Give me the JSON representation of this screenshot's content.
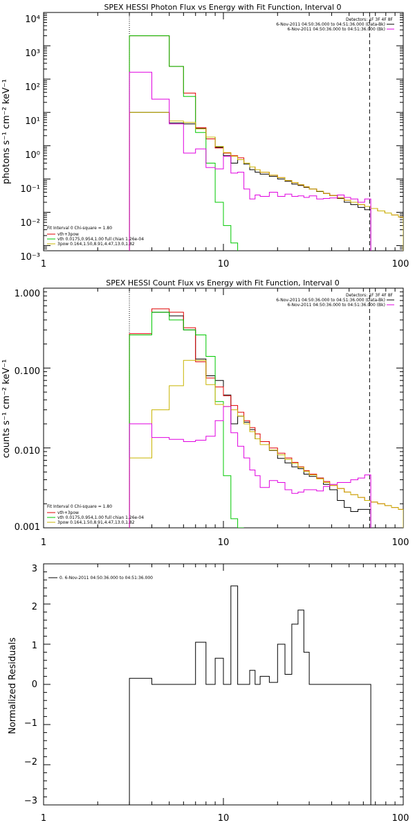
{
  "chart_data": [
    {
      "type": "line",
      "title": "SPEX HESSI Photon Flux vs Energy with Fit Function, Interval 0",
      "ylabel": "photons s⁻¹ cm⁻² keV⁻¹",
      "xlabel": "",
      "xscale": "log",
      "yscale": "log",
      "xlim": [
        1,
        100
      ],
      "ylim": [
        0.0007,
        10000
      ],
      "x_ticks": [
        1,
        10,
        100
      ],
      "x_tick_labels": [
        "1",
        "10",
        "100"
      ],
      "y_ticks": [
        0.001,
        0.01,
        0.1,
        1,
        10,
        100,
        1000,
        10000
      ],
      "y_tick_labels": [
        "10⁻³",
        "10⁻²",
        "10⁻¹",
        "10⁰",
        "10¹",
        "10²",
        "10³",
        "10⁴"
      ],
      "vlines": [
        {
          "x": 3,
          "style": "dotted"
        },
        {
          "x": 65,
          "style": "dashed"
        }
      ],
      "legend_top_right": {
        "header": "Detectors: 1F 3F 4F 8F",
        "entries": [
          {
            "label": "6-Nov-2011 04:50:36.000 to 04:51:36.000 (Data-Bk)",
            "color": "#000000"
          },
          {
            "label": "6-Nov-2011 04:50:36.000 to 04:51:36.000 (Bk)",
            "color": "#e000e0"
          }
        ]
      },
      "legend_bottom_left": {
        "header": "Fit Interval 0   Chi-square = 1.80",
        "entries": [
          {
            "label": "vth+3pow",
            "color": "#e00000"
          },
          {
            "label": "vth 0.0175,0.954,1.00  full chian 1.26e-04",
            "color": "#00c800"
          },
          {
            "label": "3pow 0.164,1.50,8.91,4.47,13.0,1.82",
            "color": "#c8b400"
          }
        ]
      },
      "edges": [
        3,
        4,
        5,
        6,
        7,
        8,
        9,
        10,
        11,
        12,
        13,
        14,
        15,
        16,
        18,
        20,
        22,
        24,
        26,
        28,
        30,
        33,
        36,
        39,
        43,
        47,
        51,
        56,
        61,
        66,
        72,
        79,
        86,
        94,
        100
      ],
      "series": [
        {
          "name": "Data-Bk",
          "color": "#000000",
          "end_edge_index": 29,
          "values": [
            10,
            10,
            4.8,
            4.5,
            3.3,
            1.8,
            0.9,
            0.5,
            0.3,
            0.38,
            0.28,
            0.19,
            0.16,
            0.14,
            0.12,
            0.1,
            0.085,
            0.07,
            0.064,
            0.056,
            0.05,
            0.042,
            0.037,
            0.032,
            0.026,
            0.02,
            0.017,
            0.014,
            0.012
          ]
        },
        {
          "name": "vth+3pow",
          "color": "#e00000",
          "end_edge_index": 34,
          "values": [
            2000,
            2000,
            240,
            38,
            3.5,
            1.6,
            0.85,
            0.6,
            0.5,
            0.43,
            0.3,
            0.23,
            0.19,
            0.16,
            0.13,
            0.11,
            0.09,
            0.078,
            0.067,
            0.058,
            0.05,
            0.043,
            0.037,
            0.032,
            0.027,
            0.023,
            0.02,
            0.017,
            0.015,
            0.013,
            0.011,
            0.0095,
            0.0083,
            0.0072
          ]
        },
        {
          "name": "vth",
          "color": "#00c800",
          "end_edge_index": 9,
          "values": [
            2000,
            2000,
            240,
            30,
            2.5,
            0.3,
            0.02,
            0.004,
            0.0012
          ]
        },
        {
          "name": "3pow",
          "color": "#c8b400",
          "end_edge_index": 34,
          "values": [
            10,
            10,
            5.5,
            5,
            3.2,
            1.8,
            0.95,
            0.62,
            0.48,
            0.38,
            0.3,
            0.23,
            0.19,
            0.16,
            0.13,
            0.11,
            0.09,
            0.078,
            0.067,
            0.058,
            0.05,
            0.043,
            0.037,
            0.032,
            0.027,
            0.023,
            0.02,
            0.017,
            0.015,
            0.013,
            0.011,
            0.0095,
            0.0083,
            0.0072
          ]
        },
        {
          "name": "Bk",
          "color": "#e000e0",
          "end_edge_index": 29,
          "values": [
            160,
            25,
            4.5,
            0.6,
            0.8,
            0.22,
            0.2,
            0.48,
            0.15,
            0.16,
            0.05,
            0.025,
            0.033,
            0.03,
            0.04,
            0.03,
            0.035,
            0.03,
            0.031,
            0.028,
            0.031,
            0.025,
            0.026,
            0.027,
            0.033,
            0.028,
            0.025,
            0.02,
            0.025
          ]
        }
      ]
    },
    {
      "type": "line",
      "title": "SPEX HESSI Count Flux vs Energy with Fit Function, Interval 0",
      "ylabel": "counts s⁻¹ cm⁻² keV⁻¹",
      "xlabel": "",
      "xscale": "log",
      "yscale": "log",
      "xlim": [
        1,
        100
      ],
      "ylim": [
        0.001,
        1.0
      ],
      "x_ticks": [
        1,
        10,
        100
      ],
      "x_tick_labels": [
        "1",
        "10",
        "100"
      ],
      "y_ticks": [
        0.001,
        0.01,
        0.1,
        1.0
      ],
      "y_tick_labels": [
        "0.001",
        "0.010",
        "0.100",
        "1.000"
      ],
      "vlines": [
        {
          "x": 3,
          "style": "dotted"
        },
        {
          "x": 65,
          "style": "dashed"
        }
      ],
      "legend_top_right": {
        "header": "Detectors: 1F 3F 4F 8F",
        "entries": [
          {
            "label": "6-Nov-2011 04:50:36.000 to 04:51:36.000 (Data-Bk)",
            "color": "#000000"
          },
          {
            "label": "6-Nov-2011 04:50:36.000 to 04:51:36.000 (Bk)",
            "color": "#e000e0"
          }
        ]
      },
      "legend_bottom_left": {
        "header": "Fit Interval 0   Chi-square = 1.80",
        "entries": [
          {
            "label": "vth+3pow",
            "color": "#e00000"
          },
          {
            "label": "vth 0.0175,0.954,1.00  full chian 1.26e-04",
            "color": "#00c800"
          },
          {
            "label": "3pow 0.164,1.50,8.91,4.47,13.0,1.82",
            "color": "#c8b400"
          }
        ]
      },
      "edges": [
        3,
        4,
        5,
        6,
        7,
        8,
        9,
        10,
        11,
        12,
        13,
        14,
        15,
        16,
        18,
        20,
        22,
        24,
        26,
        28,
        30,
        33,
        36,
        39,
        43,
        47,
        51,
        56,
        61,
        66,
        72,
        79,
        86,
        94,
        100
      ],
      "series": [
        {
          "name": "Data-Bk",
          "color": "#000000",
          "end_edge_index": 29,
          "values": [
            0.26,
            0.5,
            0.45,
            0.3,
            0.13,
            0.08,
            0.07,
            0.046,
            0.02,
            0.025,
            0.021,
            0.017,
            0.013,
            0.012,
            0.0093,
            0.0074,
            0.0065,
            0.0058,
            0.0055,
            0.0047,
            0.0044,
            0.0042,
            0.0035,
            0.003,
            0.0022,
            0.0018,
            0.0016,
            0.0017,
            0.0017
          ]
        },
        {
          "name": "vth+3pow",
          "color": "#e00000",
          "end_edge_index": 34,
          "values": [
            0.27,
            0.55,
            0.5,
            0.32,
            0.12,
            0.075,
            0.058,
            0.045,
            0.034,
            0.028,
            0.022,
            0.018,
            0.015,
            0.012,
            0.01,
            0.0086,
            0.0075,
            0.0066,
            0.0058,
            0.0052,
            0.0047,
            0.0042,
            0.0038,
            0.0034,
            0.0031,
            0.0028,
            0.0026,
            0.0024,
            0.0022,
            0.0021,
            0.002,
            0.0019,
            0.0018,
            0.0017
          ]
        },
        {
          "name": "vth",
          "color": "#00c800",
          "end_edge_index": 10,
          "values": [
            0.26,
            0.5,
            0.4,
            0.3,
            0.26,
            0.14,
            0.038,
            0.0045,
            0.0013,
            0.001
          ]
        },
        {
          "name": "3pow",
          "color": "#c8b400",
          "end_edge_index": 34,
          "values": [
            0.0075,
            0.03,
            0.06,
            0.125,
            0.125,
            0.062,
            0.035,
            0.033,
            0.03,
            0.025,
            0.02,
            0.016,
            0.013,
            0.011,
            0.0094,
            0.0082,
            0.0072,
            0.0064,
            0.0057,
            0.0051,
            0.0046,
            0.0041,
            0.0037,
            0.0034,
            0.0031,
            0.0028,
            0.0026,
            0.0024,
            0.0022,
            0.0021,
            0.002,
            0.0019,
            0.0018,
            0.0017
          ]
        },
        {
          "name": "Bk",
          "color": "#e000e0",
          "end_edge_index": 29,
          "values": [
            0.02,
            0.0135,
            0.0128,
            0.012,
            0.0125,
            0.014,
            0.022,
            0.033,
            0.0155,
            0.0105,
            0.0075,
            0.0053,
            0.0045,
            0.0032,
            0.0039,
            0.0037,
            0.003,
            0.0027,
            0.0028,
            0.003,
            0.003,
            0.0029,
            0.0033,
            0.0035,
            0.0037,
            0.0037,
            0.004,
            0.0042,
            0.0046
          ]
        }
      ]
    },
    {
      "type": "line",
      "title": "",
      "ylabel": "Normalized Residuals",
      "xlabel": "",
      "xscale": "log",
      "yscale": "linear",
      "xlim": [
        1,
        100
      ],
      "ylim": [
        -3,
        3
      ],
      "x_ticks": [
        1,
        10,
        100
      ],
      "x_tick_labels": [
        "1",
        "10",
        "100"
      ],
      "y_ticks": [
        -3,
        -2,
        -1,
        0,
        1,
        2,
        3
      ],
      "y_tick_labels": [
        "−3",
        "−2",
        "−1",
        "0",
        "1",
        "2",
        "3"
      ],
      "legend_top_left": {
        "entries": [
          {
            "label": "0.  6-Nov-2011 04:50:36.000 to 04:51:36.000",
            "color": "#000000"
          }
        ]
      },
      "edges": [
        3,
        4,
        5,
        6,
        7,
        8,
        9,
        10,
        11,
        12,
        13,
        14,
        15,
        16,
        18,
        20,
        22,
        24,
        26,
        28,
        30,
        33,
        36,
        39,
        43,
        47,
        51,
        56,
        61,
        66
      ],
      "series": [
        {
          "name": "0.  6-Nov-2011 04:50:36.000 to 04:51:36.000",
          "color": "#000000",
          "end_edge_index": 29,
          "values": [
            0.15,
            -0.05,
            0.0,
            -0.5,
            1.05,
            -0.5,
            0.65,
            -3.0,
            2.45,
            -0.45,
            -0.6,
            0.35,
            -0.75,
            0.2,
            0.05,
            1.0,
            0.25,
            1.5,
            1.85,
            0.8,
            -0.5,
            -1.1,
            -1.05,
            -1.25,
            -1.0,
            -1.0,
            -1.0,
            -1.0,
            -1.0
          ]
        }
      ]
    }
  ]
}
